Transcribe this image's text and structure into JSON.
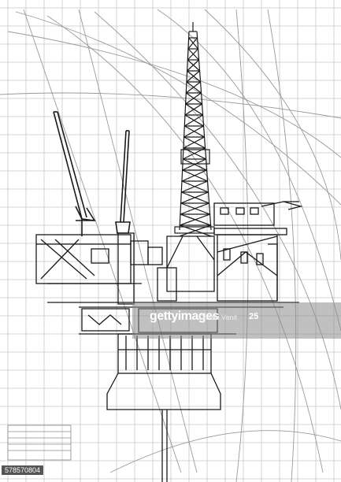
{
  "colors": {
    "background": "#ffffff",
    "grid": "#c8c8c8",
    "drawing": "#1a1a1a",
    "watermark_band": "#8c8c8c"
  },
  "drawing": {
    "subject": "offshore-oil-platform-elevation"
  },
  "watermark": {
    "logo": "gettyimages",
    "tagline": "Credit: Vanit",
    "number": "25"
  },
  "image_id": "578570804"
}
